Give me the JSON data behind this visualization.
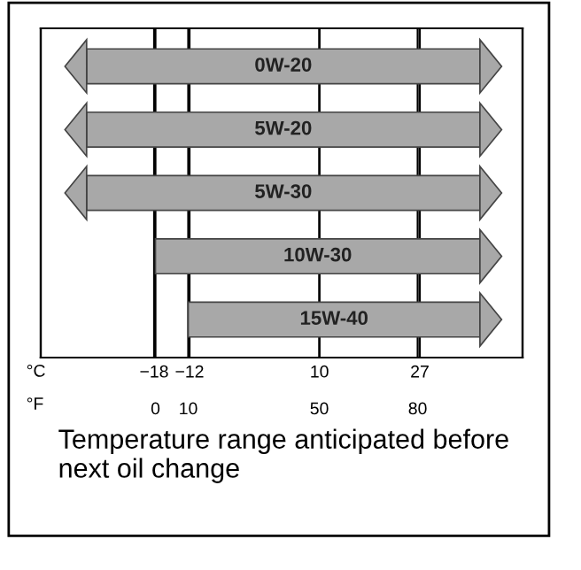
{
  "chart_data": {
    "type": "bar",
    "orientation": "horizontal",
    "categories": [
      "0W-20",
      "5W-20",
      "5W-30",
      "10W-30",
      "15W-40"
    ],
    "base": [
      -21,
      -21,
      -21,
      0,
      10
    ],
    "values": [
      120,
      120,
      120,
      99,
      89
    ],
    "color": "#a8a8a8",
    "xlim": [
      -35,
      112
    ],
    "xticks": [
      0,
      10,
      50,
      80
    ],
    "xlabel": "°F",
    "x2lim": [
      -37.2,
      44.4
    ],
    "x2ticks": [
      {
        "value": -18,
        "label": "−18"
      },
      {
        "value": -12,
        "label": "−12"
      },
      10,
      27
    ],
    "x2label": "°C",
    "grid": "x",
    "tick_labels": "x",
    "annotations": [
      "Temperature range anticipated before next oil change"
    ]
  }
}
